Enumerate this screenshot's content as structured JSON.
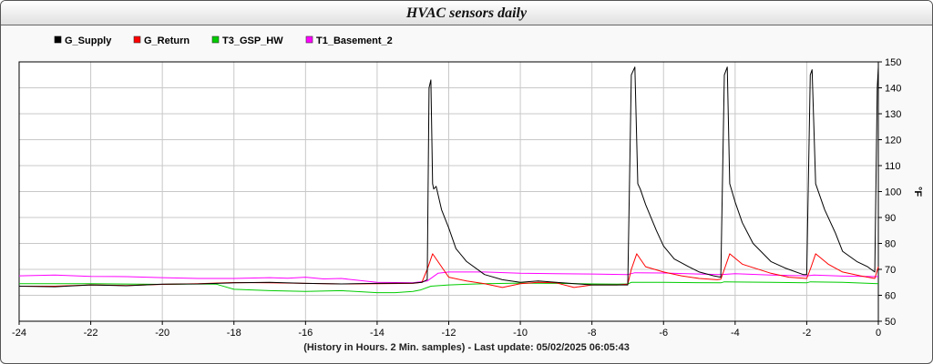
{
  "chart_data": {
    "type": "line",
    "title": "HVAC sensors daily",
    "xlabel": "(History in Hours. 2 Min. samples) - Last update: 05/02/2025 06:05:43",
    "ylabel": "°F",
    "xlim": [
      -24,
      0
    ],
    "ylim": [
      50,
      150
    ],
    "xticks": [
      -24,
      -22,
      -20,
      -18,
      -16,
      -14,
      -12,
      -10,
      -8,
      -6,
      -4,
      -2,
      0
    ],
    "yticks": [
      50,
      60,
      70,
      80,
      90,
      100,
      110,
      120,
      130,
      140,
      150
    ],
    "grid": true,
    "legend_position": "top-left",
    "series": [
      {
        "name": "G_Supply",
        "color": "#000000",
        "x": [
          -24,
          -23,
          -22,
          -21,
          -20,
          -19,
          -18,
          -17,
          -16,
          -15,
          -14,
          -13,
          -12.75,
          -12.6,
          -12.55,
          -12.5,
          -12.45,
          -12.42,
          -12.35,
          -12.2,
          -12.0,
          -11.8,
          -11.5,
          -11.0,
          -10.5,
          -10.0,
          -9.5,
          -9.0,
          -8.0,
          -7.3,
          -7.0,
          -6.9,
          -6.8,
          -6.72,
          -6.65,
          -6.5,
          -6.2,
          -6.0,
          -5.7,
          -5.3,
          -5.0,
          -4.6,
          -4.4,
          -4.3,
          -4.22,
          -4.15,
          -4.0,
          -3.8,
          -3.5,
          -3.0,
          -2.6,
          -2.1,
          -2.0,
          -1.9,
          -1.85,
          -1.75,
          -1.5,
          -1.2,
          -1.0,
          -0.6,
          -0.3,
          -0.2,
          -0.1,
          -0.03,
          0
        ],
        "y": [
          63.5,
          63.3,
          64,
          63.7,
          64.3,
          64.4,
          64.8,
          65,
          64.6,
          64.4,
          64.6,
          64.7,
          65,
          66,
          140,
          143,
          103,
          101,
          102,
          93,
          86,
          78,
          73,
          68,
          66,
          65,
          65.5,
          65,
          64,
          64,
          64,
          145,
          148,
          103,
          101,
          95,
          85,
          79,
          74,
          71,
          69,
          67.5,
          67,
          145,
          148,
          103,
          96,
          88,
          80,
          73,
          70.5,
          68,
          68,
          145,
          147,
          103,
          93,
          84,
          77,
          73,
          71,
          70,
          69,
          140,
          148
        ]
      },
      {
        "name": "G_Return",
        "color": "#ff0000",
        "x": [
          -24,
          -23,
          -22,
          -21,
          -20,
          -19,
          -18,
          -17,
          -16,
          -15,
          -14,
          -13,
          -12.75,
          -12.6,
          -12.45,
          -12.2,
          -12.0,
          -11.5,
          -11.0,
          -10.5,
          -10.0,
          -9.5,
          -9.0,
          -8.5,
          -8.0,
          -7.3,
          -7.0,
          -6.9,
          -6.75,
          -6.5,
          -6.0,
          -5.5,
          -5.0,
          -4.5,
          -4.4,
          -4.3,
          -4.15,
          -3.8,
          -3.0,
          -2.5,
          -2.0,
          -1.9,
          -1.75,
          -1.4,
          -1.0,
          -0.5,
          -0.1,
          0
        ],
        "y": [
          63.5,
          63.5,
          64,
          63.8,
          64.2,
          64.5,
          64.9,
          64.8,
          64.6,
          64.4,
          64.5,
          64.6,
          65,
          70,
          76,
          71,
          67,
          65.5,
          64.5,
          63,
          64.5,
          65,
          64.8,
          63,
          64,
          64,
          64.3,
          70,
          76,
          71,
          69,
          67.5,
          66.5,
          66,
          66.2,
          70,
          76,
          72,
          68.5,
          67,
          66.5,
          70,
          76,
          72,
          69,
          67.5,
          66.5,
          71
        ]
      },
      {
        "name": "T3_GSP_HW",
        "color": "#00cc00",
        "x": [
          -24,
          -22,
          -20,
          -19,
          -18.5,
          -18,
          -17,
          -16,
          -15,
          -14,
          -13.5,
          -13,
          -12.8,
          -12.5,
          -12,
          -11,
          -10,
          -9,
          -8,
          -7.3,
          -7,
          -6.9,
          -6,
          -4.4,
          -4.3,
          -3,
          -2,
          -1.9,
          -1,
          0
        ],
        "y": [
          64.5,
          64.5,
          64.2,
          64.4,
          64.3,
          62.3,
          61.8,
          61.5,
          61.8,
          61,
          61,
          61.5,
          62,
          63.5,
          64,
          64.5,
          64.7,
          64.6,
          64.4,
          64.3,
          64.4,
          65,
          65,
          64.8,
          65.2,
          65,
          64.8,
          65.2,
          65,
          64.5
        ]
      },
      {
        "name": "T1_Basement_2",
        "color": "#ff00ff",
        "x": [
          -24,
          -23,
          -22,
          -21,
          -20,
          -19,
          -18,
          -17,
          -16.5,
          -16,
          -15.5,
          -15,
          -14,
          -13,
          -12.6,
          -12.3,
          -12,
          -11,
          -10,
          -9,
          -8,
          -7,
          -6.8,
          -6,
          -5,
          -4.4,
          -4,
          -3,
          -2,
          -1.8,
          -1,
          0
        ],
        "y": [
          67.5,
          67.8,
          67.3,
          67.2,
          66.8,
          66.5,
          66.5,
          66.8,
          66.6,
          67,
          66.3,
          66.5,
          65,
          64.8,
          65.5,
          68.5,
          69,
          69,
          68.5,
          68.3,
          68.2,
          68,
          68.7,
          68.6,
          68.2,
          68,
          68.3,
          67.8,
          67.5,
          67.8,
          67.4,
          67.2
        ]
      }
    ]
  }
}
